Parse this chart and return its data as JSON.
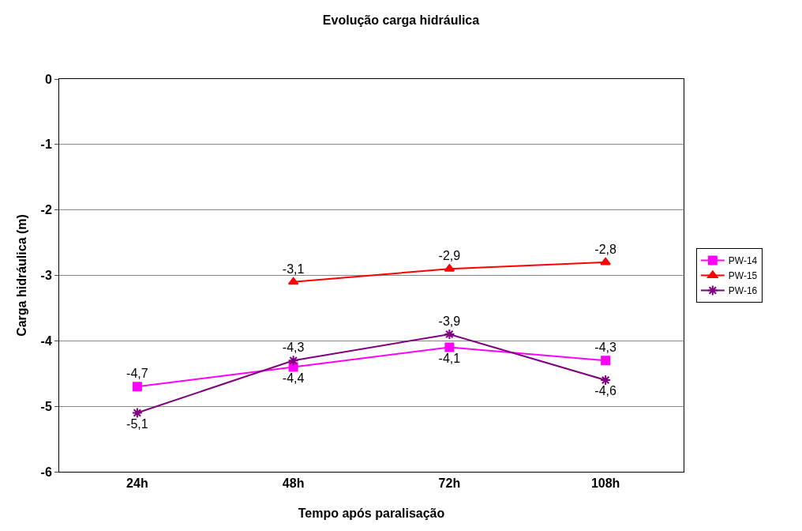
{
  "chart_data": {
    "type": "line",
    "title": "Evolução carga hidráulica",
    "xlabel": "Tempo após paralisação",
    "ylabel": "Carga hidráulica (m)",
    "categories": [
      "24h",
      "48h",
      "72h",
      "108h"
    ],
    "series": [
      {
        "name": "PW-14",
        "color": "#ff00ff",
        "marker": "square",
        "values": [
          -4.7,
          -4.4,
          -4.1,
          -4.3
        ],
        "value_labels": [
          "-4,7",
          "-4,4",
          "-4,1",
          "-4,3"
        ]
      },
      {
        "name": "PW-15",
        "color": "#ff0000",
        "marker": "triangle",
        "values": [
          null,
          -3.1,
          -2.9,
          -2.8
        ],
        "value_labels": [
          null,
          "-3,1",
          "-2,9",
          "-2,8"
        ]
      },
      {
        "name": "PW-16",
        "color": "#800080",
        "marker": "cross",
        "values": [
          -5.1,
          -4.3,
          -3.9,
          -4.6
        ],
        "value_labels": [
          "-5,1",
          "-4,3",
          "-3,9",
          "-4,6"
        ]
      }
    ],
    "ylim": [
      -6,
      0
    ],
    "yticks": [
      -6,
      -5,
      -4,
      -3,
      -2,
      -1,
      0
    ],
    "grid": "y",
    "legend": "right"
  }
}
